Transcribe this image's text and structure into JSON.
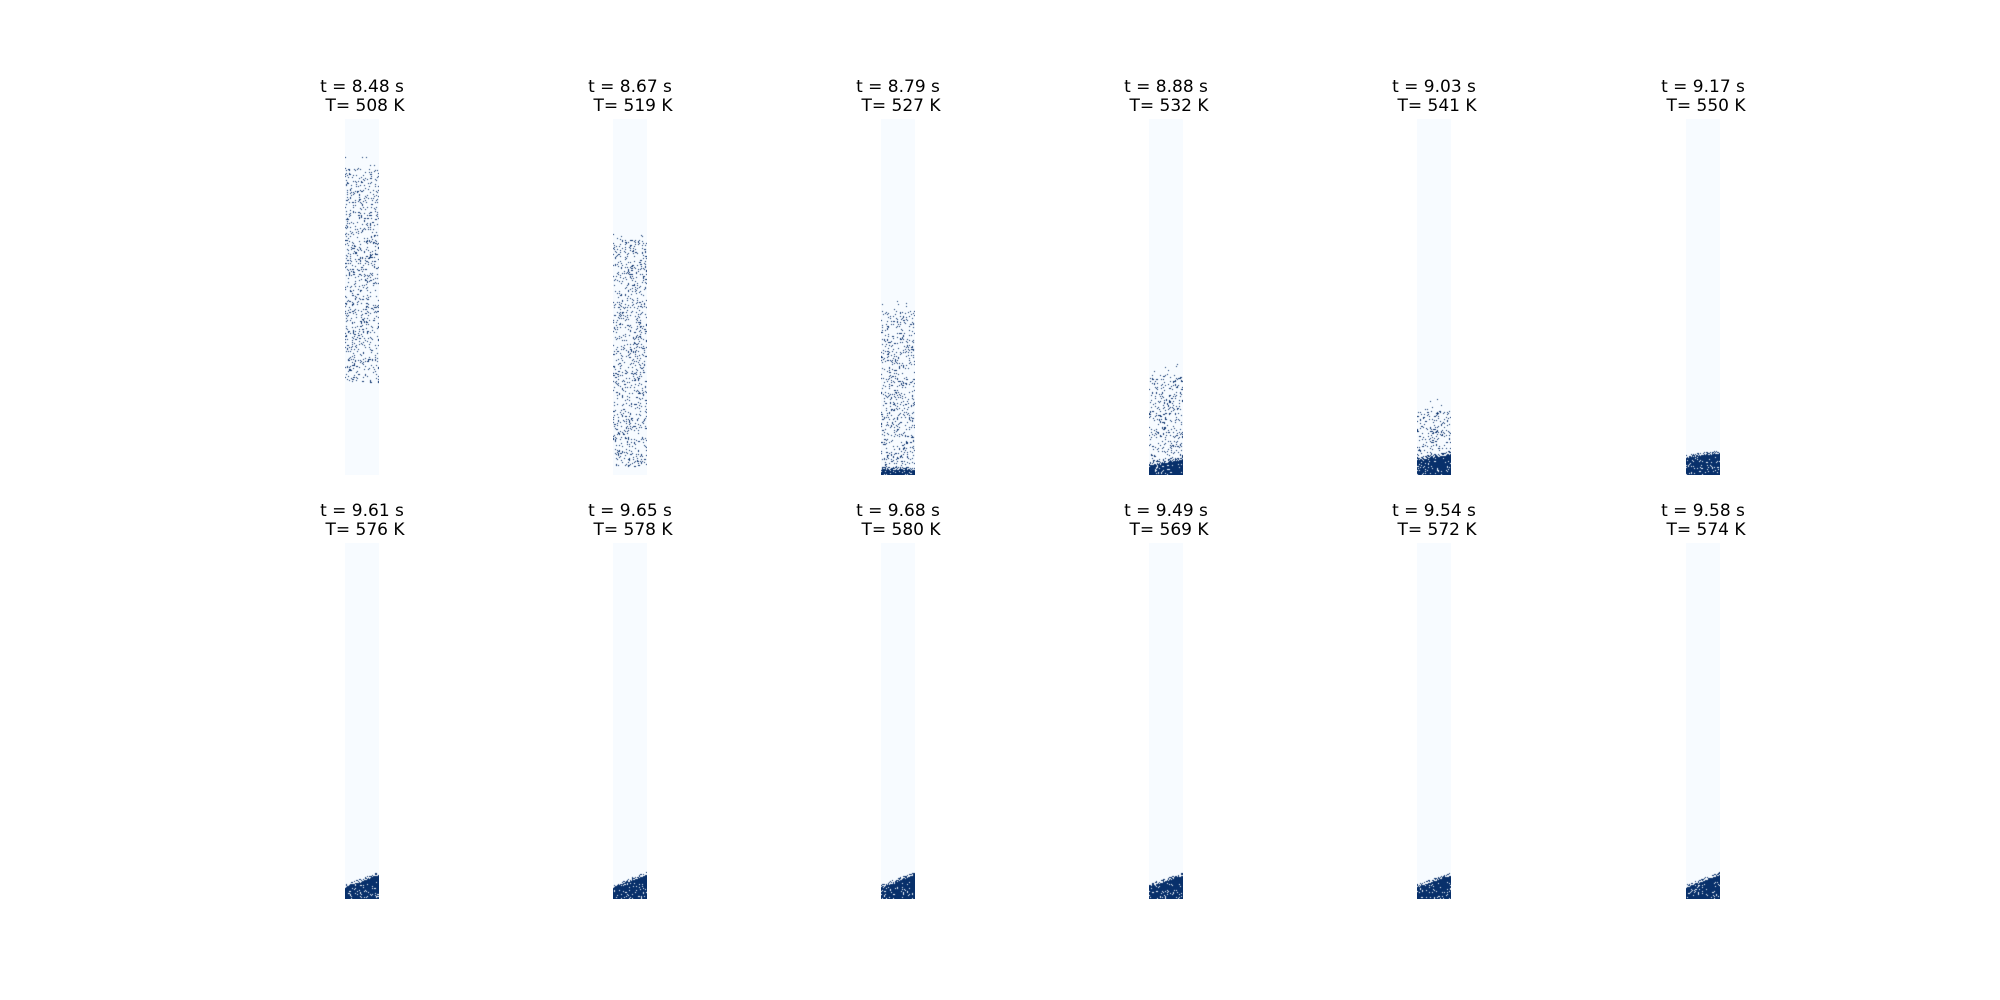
{
  "colors": {
    "background": "#ffffff",
    "column": "#f7fbff",
    "particle": "#08306b"
  },
  "colormap": "Blues",
  "chart_data": [
    {
      "type": "heatmap",
      "row": 1,
      "col": 1,
      "time_label": "t = 8.48 s",
      "temp_label": "T= 508 K",
      "t_s": 8.48,
      "T_K": 508,
      "state": "falling",
      "cloud_top": 0.86,
      "cloud_bottom": 0.26,
      "bed_height": 0.0,
      "bed_slope": 0.0
    },
    {
      "type": "heatmap",
      "row": 1,
      "col": 2,
      "time_label": "t = 8.67 s",
      "temp_label": "T= 519 K",
      "t_s": 8.67,
      "T_K": 519,
      "state": "falling",
      "cloud_top": 0.66,
      "cloud_bottom": 0.02,
      "bed_height": 0.0,
      "bed_slope": 0.0
    },
    {
      "type": "heatmap",
      "row": 1,
      "col": 3,
      "time_label": "t = 8.79 s",
      "temp_label": "T= 527 K",
      "t_s": 8.79,
      "T_K": 527,
      "state": "falling",
      "cloud_top": 0.46,
      "cloud_bottom": 0.0,
      "bed_height": 0.02,
      "bed_slope": 0.0
    },
    {
      "type": "heatmap",
      "row": 1,
      "col": 4,
      "time_label": "t = 8.88 s",
      "temp_label": "T= 532 K",
      "t_s": 8.88,
      "T_K": 532,
      "state": "settling",
      "cloud_top": 0.28,
      "cloud_bottom": 0.0,
      "bed_height": 0.04,
      "bed_slope": 0.015
    },
    {
      "type": "heatmap",
      "row": 1,
      "col": 5,
      "time_label": "t = 9.03 s",
      "temp_label": "T= 541 K",
      "t_s": 9.03,
      "T_K": 541,
      "state": "settling",
      "cloud_top": 0.18,
      "cloud_bottom": 0.04,
      "bed_height": 0.055,
      "bed_slope": 0.015
    },
    {
      "type": "heatmap",
      "row": 1,
      "col": 6,
      "time_label": "t = 9.17 s",
      "temp_label": "T= 550 K",
      "t_s": 9.17,
      "T_K": 550,
      "state": "settled",
      "cloud_top": 0.0,
      "cloud_bottom": 0.0,
      "bed_height": 0.06,
      "bed_slope": 0.012
    },
    {
      "type": "heatmap",
      "row": 2,
      "col": 1,
      "time_label": "t = 9.61 s",
      "temp_label": "T= 576 K",
      "t_s": 9.61,
      "T_K": 576,
      "state": "settled",
      "cloud_top": 0.0,
      "cloud_bottom": 0.0,
      "bed_height": 0.055,
      "bed_slope": 0.035
    },
    {
      "type": "heatmap",
      "row": 2,
      "col": 2,
      "time_label": "t = 9.65 s",
      "temp_label": "T= 578 K",
      "t_s": 9.65,
      "T_K": 578,
      "state": "settled",
      "cloud_top": 0.0,
      "cloud_bottom": 0.0,
      "bed_height": 0.055,
      "bed_slope": 0.035
    },
    {
      "type": "heatmap",
      "row": 2,
      "col": 3,
      "time_label": "t = 9.68 s",
      "temp_label": "T= 580 K",
      "t_s": 9.68,
      "T_K": 580,
      "state": "settled",
      "cloud_top": 0.0,
      "cloud_bottom": 0.0,
      "bed_height": 0.055,
      "bed_slope": 0.035
    },
    {
      "type": "heatmap",
      "row": 2,
      "col": 4,
      "time_label": "t = 9.49 s",
      "temp_label": "T= 569 K",
      "t_s": 9.49,
      "T_K": 569,
      "state": "settled",
      "cloud_top": 0.0,
      "cloud_bottom": 0.0,
      "bed_height": 0.055,
      "bed_slope": 0.03
    },
    {
      "type": "heatmap",
      "row": 2,
      "col": 5,
      "time_label": "t = 9.54 s",
      "temp_label": "T= 572 K",
      "t_s": 9.54,
      "T_K": 572,
      "state": "settled",
      "cloud_top": 0.0,
      "cloud_bottom": 0.0,
      "bed_height": 0.055,
      "bed_slope": 0.03
    },
    {
      "type": "heatmap",
      "row": 2,
      "col": 6,
      "time_label": "t = 9.58 s",
      "temp_label": "T= 574 K",
      "t_s": 9.58,
      "T_K": 574,
      "state": "settled",
      "cloud_top": 0.0,
      "cloud_bottom": 0.0,
      "bed_height": 0.055,
      "bed_slope": 0.035
    }
  ]
}
